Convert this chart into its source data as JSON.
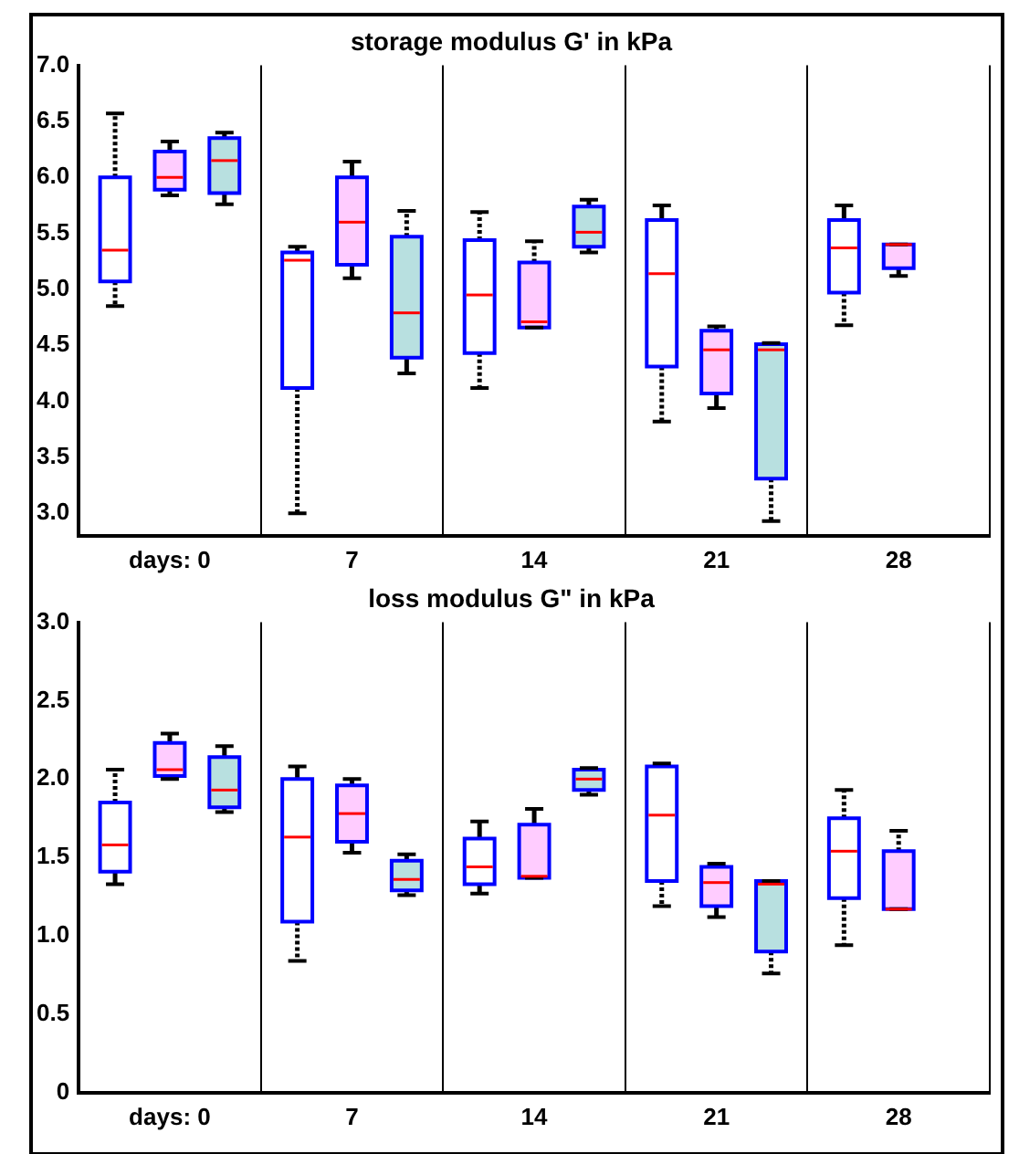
{
  "chart_data": [
    {
      "type": "box",
      "title": "storage modulus G' in kPa",
      "categories": [
        "days: 0",
        "7",
        "14",
        "21",
        "28"
      ],
      "ylim": [
        2.8,
        7.0
      ],
      "yticks": [
        {
          "value": 3,
          "label": "3.0"
        },
        3.5,
        {
          "value": 4,
          "label": "4.0"
        },
        4.5,
        {
          "value": 5,
          "label": "5.0"
        },
        5.5,
        {
          "value": 6,
          "label": "6.0"
        },
        6.5,
        {
          "value": 7,
          "label": "7.0"
        }
      ],
      "grid": "x",
      "series": [
        {
          "color": "#ffffff",
          "boxes": [
            {
              "low": 4.85,
              "q1": 5.07,
              "median": 5.35,
              "q3": 6.0,
              "high": 6.57
            },
            {
              "low": 3.0,
              "q1": 4.12,
              "median": 5.26,
              "q3": 5.33,
              "high": 5.38
            },
            {
              "low": 4.12,
              "q1": 4.43,
              "median": 4.95,
              "q3": 5.44,
              "high": 5.69
            },
            {
              "low": 3.82,
              "q1": 4.31,
              "median": 5.14,
              "q3": 5.62,
              "high": 5.75
            },
            {
              "low": 4.68,
              "q1": 4.97,
              "median": 5.37,
              "q3": 5.62,
              "high": 5.75
            }
          ]
        },
        {
          "color": "#ffccff",
          "boxes": [
            {
              "low": 5.84,
              "q1": 5.89,
              "median": 6.0,
              "q3": 6.23,
              "high": 6.32
            },
            {
              "low": 5.1,
              "q1": 5.22,
              "median": 5.6,
              "q3": 6.0,
              "high": 6.14
            },
            {
              "low": 4.66,
              "q1": 4.66,
              "median": 4.71,
              "q3": 5.24,
              "high": 5.43
            },
            {
              "low": 3.94,
              "q1": 4.07,
              "median": 4.46,
              "q3": 4.63,
              "high": 4.67
            },
            {
              "low": 5.12,
              "q1": 5.19,
              "median": 5.4,
              "q3": 5.4,
              "high": 5.4
            }
          ]
        },
        {
          "color": "#b8e0e0",
          "boxes": [
            {
              "low": 5.76,
              "q1": 5.86,
              "median": 6.15,
              "q3": 6.35,
              "high": 6.4
            },
            {
              "low": 4.25,
              "q1": 4.39,
              "median": 4.79,
              "q3": 5.47,
              "high": 5.7
            },
            {
              "low": 5.33,
              "q1": 5.38,
              "median": 5.51,
              "q3": 5.74,
              "high": 5.8
            },
            {
              "low": 2.93,
              "q1": 3.31,
              "median": 4.46,
              "q3": 4.51,
              "high": 4.52
            },
            null
          ]
        }
      ]
    },
    {
      "type": "box",
      "title": "loss modulus G\" in kPa",
      "categories": [
        "days: 0",
        "7",
        "14",
        "21",
        "28"
      ],
      "ylim": [
        0,
        3.0
      ],
      "yticks": [
        0,
        0.5,
        {
          "value": 1,
          "label": "1.0"
        },
        1.5,
        {
          "value": 2,
          "label": "2.0"
        },
        2.5,
        {
          "value": 3,
          "label": "3.0"
        }
      ],
      "grid": "x",
      "series": [
        {
          "color": "#ffffff",
          "boxes": [
            {
              "low": 1.33,
              "q1": 1.41,
              "median": 1.58,
              "q3": 1.85,
              "high": 2.06
            },
            {
              "low": 0.84,
              "q1": 1.09,
              "median": 1.63,
              "q3": 2.0,
              "high": 2.08
            },
            {
              "low": 1.27,
              "q1": 1.33,
              "median": 1.44,
              "q3": 1.62,
              "high": 1.73
            },
            {
              "low": 1.19,
              "q1": 1.35,
              "median": 1.77,
              "q3": 2.08,
              "high": 2.1
            },
            {
              "low": 0.94,
              "q1": 1.24,
              "median": 1.54,
              "q3": 1.75,
              "high": 1.93
            }
          ]
        },
        {
          "color": "#ffccff",
          "boxes": [
            {
              "low": 2.0,
              "q1": 2.02,
              "median": 2.06,
              "q3": 2.23,
              "high": 2.29
            },
            {
              "low": 1.53,
              "q1": 1.6,
              "median": 1.78,
              "q3": 1.96,
              "high": 2.0
            },
            {
              "low": 1.37,
              "q1": 1.37,
              "median": 1.38,
              "q3": 1.71,
              "high": 1.81
            },
            {
              "low": 1.12,
              "q1": 1.19,
              "median": 1.34,
              "q3": 1.44,
              "high": 1.46
            },
            {
              "low": 1.17,
              "q1": 1.17,
              "median": 1.17,
              "q3": 1.54,
              "high": 1.67
            }
          ]
        },
        {
          "color": "#b8e0e0",
          "boxes": [
            {
              "low": 1.79,
              "q1": 1.82,
              "median": 1.93,
              "q3": 2.14,
              "high": 2.21
            },
            {
              "low": 1.26,
              "q1": 1.29,
              "median": 1.36,
              "q3": 1.48,
              "high": 1.52
            },
            {
              "low": 1.9,
              "q1": 1.93,
              "median": 2.0,
              "q3": 2.06,
              "high": 2.07
            },
            {
              "low": 0.76,
              "q1": 0.9,
              "median": 1.33,
              "q3": 1.35,
              "high": 1.35
            },
            null
          ]
        }
      ]
    }
  ]
}
